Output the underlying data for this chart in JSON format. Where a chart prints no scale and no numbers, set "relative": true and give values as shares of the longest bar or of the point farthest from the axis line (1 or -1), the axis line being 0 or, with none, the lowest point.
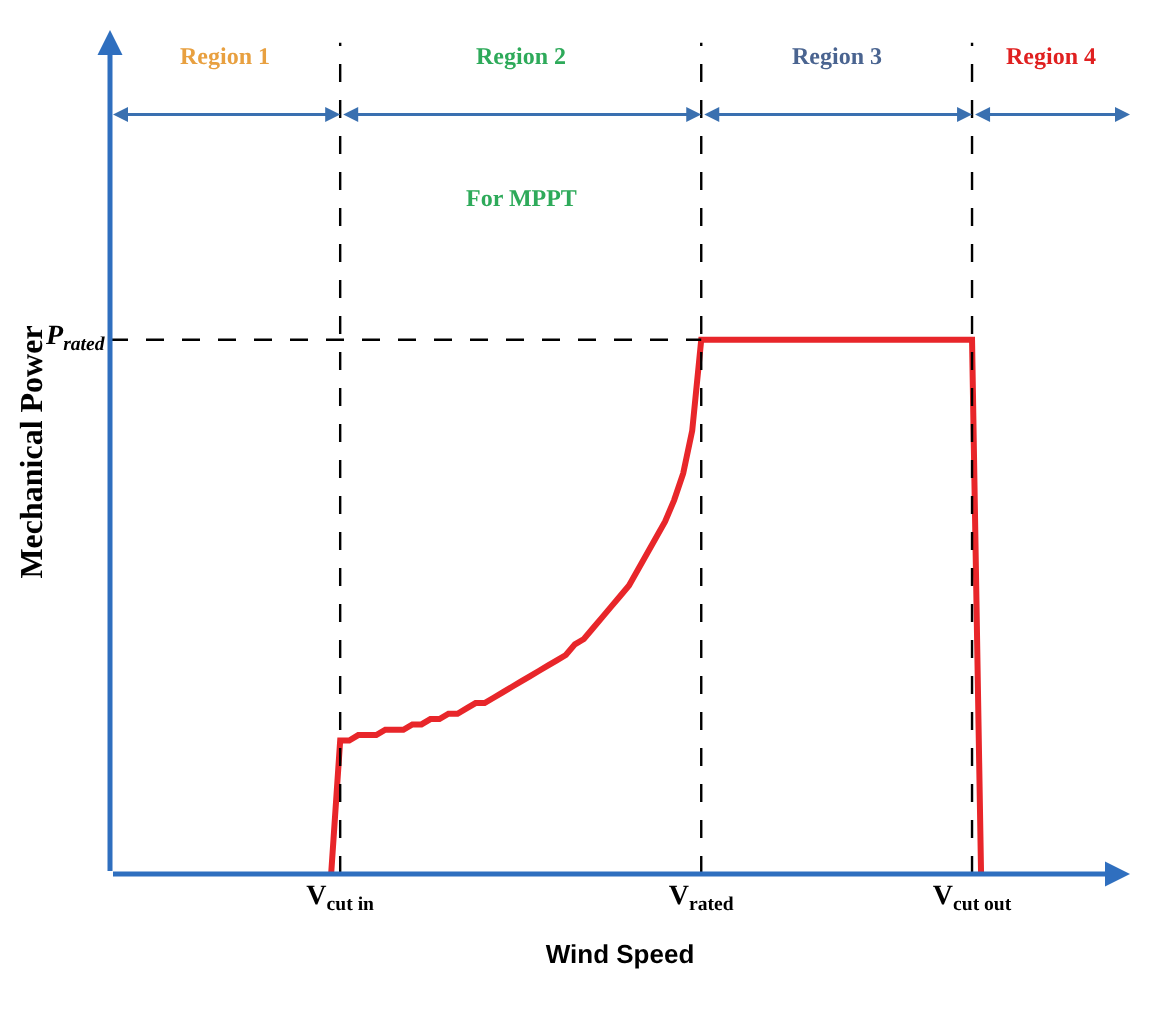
{
  "chart_data": {
    "type": "line",
    "relative": true,
    "xlabel": "Wind Speed",
    "ylabel": "Mechanical Power",
    "categories": [
      null,
      null,
      null,
      null,
      null,
      null,
      null,
      null,
      null,
      null,
      null,
      null,
      null,
      null,
      null,
      null,
      null,
      null,
      null,
      null,
      null,
      null,
      null,
      null,
      null,
      "V$_{cut in}$",
      null,
      null,
      null,
      null,
      null,
      null,
      null,
      null,
      null,
      null,
      null,
      null,
      null,
      null,
      null,
      null,
      null,
      null,
      null,
      null,
      null,
      null,
      null,
      null,
      null,
      null,
      null,
      null,
      null,
      null,
      null,
      null,
      null,
      null,
      null,
      null,
      null,
      null,
      null,
      "V$_{rated}$",
      null,
      null,
      null,
      null,
      null,
      null,
      null,
      null,
      null,
      null,
      null,
      null,
      null,
      null,
      null,
      null,
      null,
      null,
      null,
      null,
      null,
      null,
      null,
      null,
      null,
      null,
      null,
      null,
      null,
      "V$_{cut out}$",
      null,
      null,
      null,
      null,
      null,
      null,
      null,
      null,
      null,
      null,
      null,
      null,
      null,
      null,
      null,
      null,
      null
    ],
    "series": [
      {
        "color": "#e8262a",
        "values": [
          null,
          null,
          null,
          null,
          null,
          null,
          null,
          null,
          null,
          null,
          null,
          null,
          null,
          null,
          null,
          null,
          null,
          null,
          null,
          null,
          null,
          null,
          null,
          null,
          0,
          0.25,
          0.25,
          0.26,
          0.26,
          0.26,
          0.27,
          0.27,
          0.27,
          0.28,
          0.28,
          0.29,
          0.29,
          0.3,
          0.3,
          0.31,
          0.32,
          0.32,
          0.33,
          0.34,
          0.35,
          0.36,
          0.37,
          0.38,
          0.39,
          0.4,
          0.41,
          0.43,
          0.44,
          0.46,
          0.48,
          0.5,
          0.52,
          0.54,
          0.57,
          0.6,
          0.63,
          0.66,
          0.7,
          0.75,
          0.83,
          1,
          1,
          1,
          1,
          1,
          1,
          1,
          1,
          1,
          1,
          1,
          1,
          1,
          1,
          1,
          1,
          1,
          1,
          1,
          1,
          1,
          1,
          1,
          1,
          1,
          1,
          1,
          1,
          1,
          1,
          1,
          0,
          null,
          null,
          null,
          null,
          null,
          null,
          null,
          null,
          null,
          null,
          null,
          null,
          null,
          null,
          null,
          null
        ]
      }
    ],
    "tick_labels": "x",
    "marker": "none",
    "line_style": "solid",
    "ref_lines": [
      {
        "axis": "y",
        "value": 1,
        "label": "P$_{rated}$",
        "color": "#000000",
        "line_style": "dashed"
      },
      {
        "axis": "x",
        "value": "V$_{cut in}$",
        "color": "#000000",
        "line_style": "dashed"
      },
      {
        "axis": "x",
        "value": "V$_{rated}$",
        "color": "#000000",
        "line_style": "dashed"
      },
      {
        "axis": "x",
        "value": "V$_{cut out}$",
        "color": "#000000",
        "line_style": "dashed"
      }
    ],
    "annotations": [
      "Region 1",
      "Region 2",
      "Region 3",
      "Region 4",
      "For MPPT"
    ]
  }
}
